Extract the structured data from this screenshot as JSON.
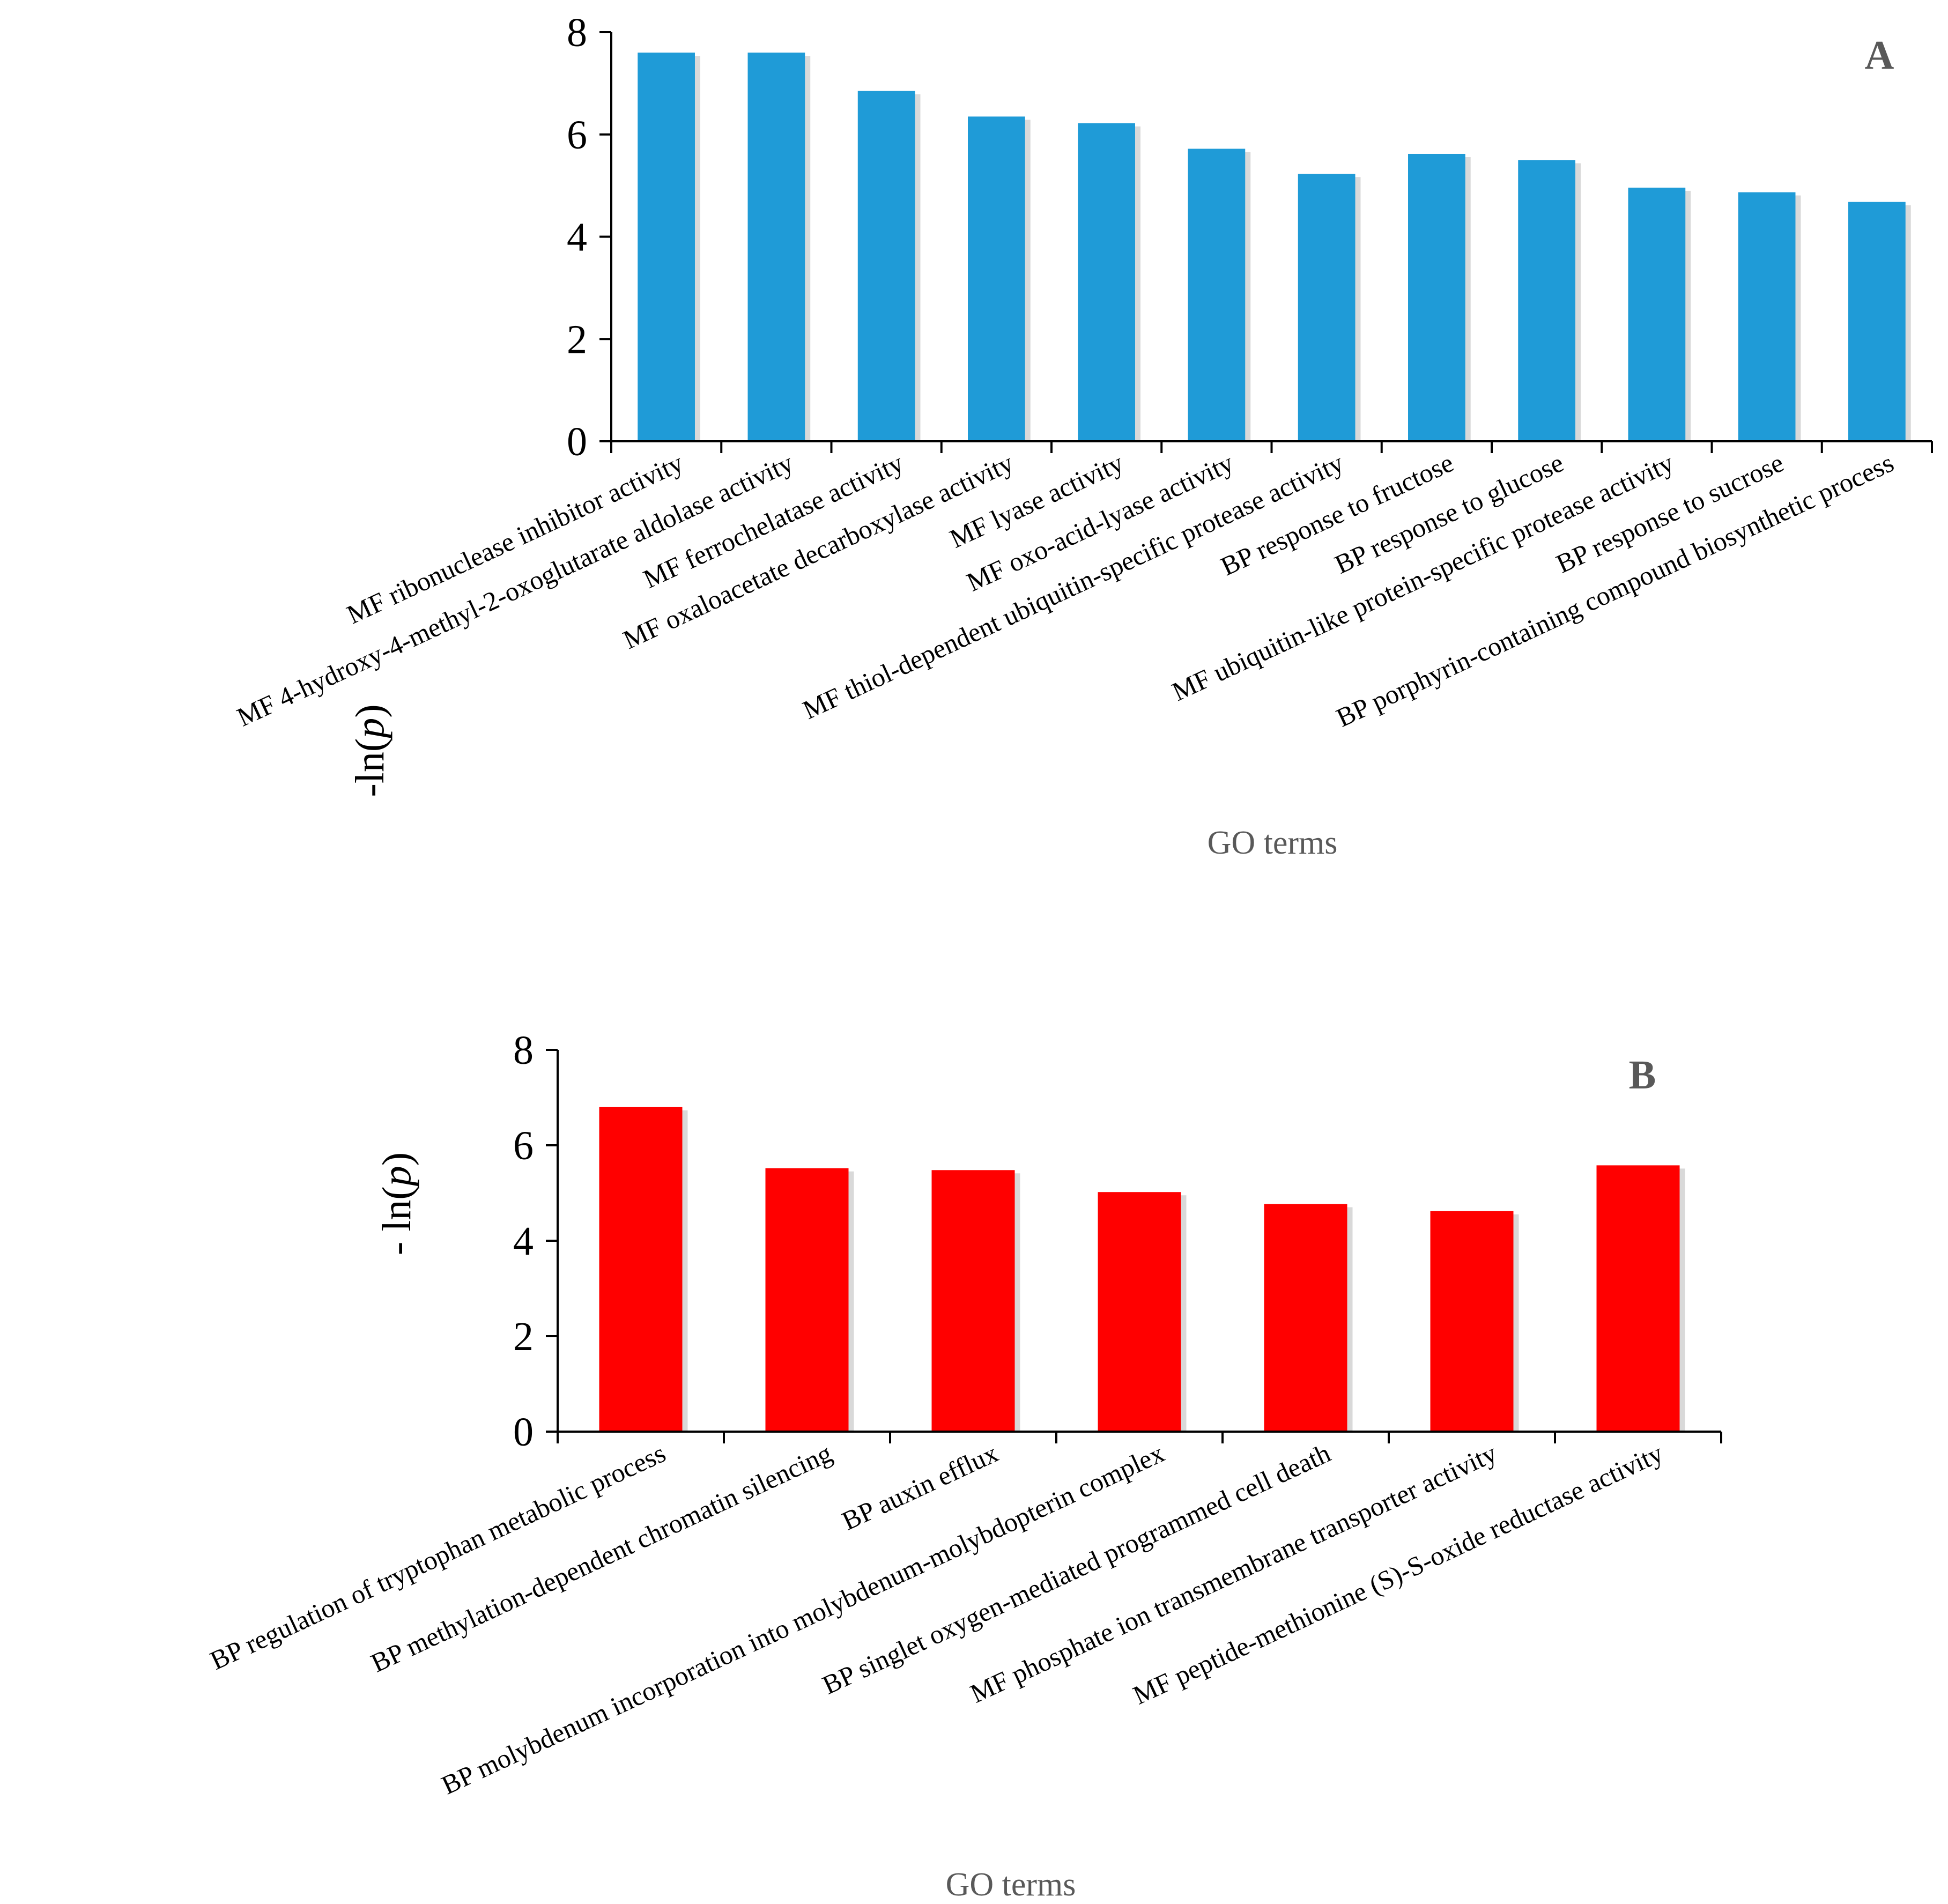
{
  "chart_data": [
    {
      "type": "bar",
      "panel_label": "A",
      "ylabel": "-ln(p)",
      "xlabel": "GO terms",
      "ylim": [
        0,
        8
      ],
      "yticks": [
        0,
        2,
        4,
        6,
        8
      ],
      "bar_color": "#1f9bd7",
      "label_color": "#595959",
      "grid": false,
      "categories": [
        "MF ribonuclease inhibitor activity",
        "MF 4-hydroxy-4-methyl-2-oxoglutarate aldolase activity",
        "MF ferrochelatase activity",
        "MF oxaloacetate decarboxylase activity",
        "MF lyase activity",
        "MF oxo-acid-lyase activity",
        "MF thiol-dependent ubiquitin-specific protease activity",
        "BP response to fructose",
        "BP response to glucose",
        "MF ubiquitin-like protein-specific protease activity",
        "BP response to sucrose",
        "BP porphyrin-containing compound biosynthetic process"
      ],
      "values": [
        7.6,
        7.6,
        6.85,
        6.35,
        6.22,
        5.72,
        5.23,
        5.62,
        5.5,
        4.96,
        4.87,
        4.68
      ]
    },
    {
      "type": "bar",
      "panel_label": "B",
      "ylabel": "- ln(p)",
      "xlabel": "GO terms",
      "ylim": [
        0,
        8
      ],
      "yticks": [
        0,
        2,
        4,
        6,
        8
      ],
      "bar_color": "#ff0000",
      "label_color": "#595959",
      "grid": false,
      "categories": [
        "BP regulation of tryptophan metabolic process",
        "BP methylation-dependent chromatin silencing",
        "BP auxin efflux",
        "BP molybdenum incorporation into molybdenum-molybdopterin complex",
        "BP singlet oxygen-mediated programmed cell death",
        "MF phosphate ion transmembrane transporter activity",
        "MF peptide-methionine (S)-S-oxide reductase activity"
      ],
      "values": [
        6.8,
        5.52,
        5.48,
        5.02,
        4.77,
        4.62,
        5.58
      ]
    }
  ]
}
